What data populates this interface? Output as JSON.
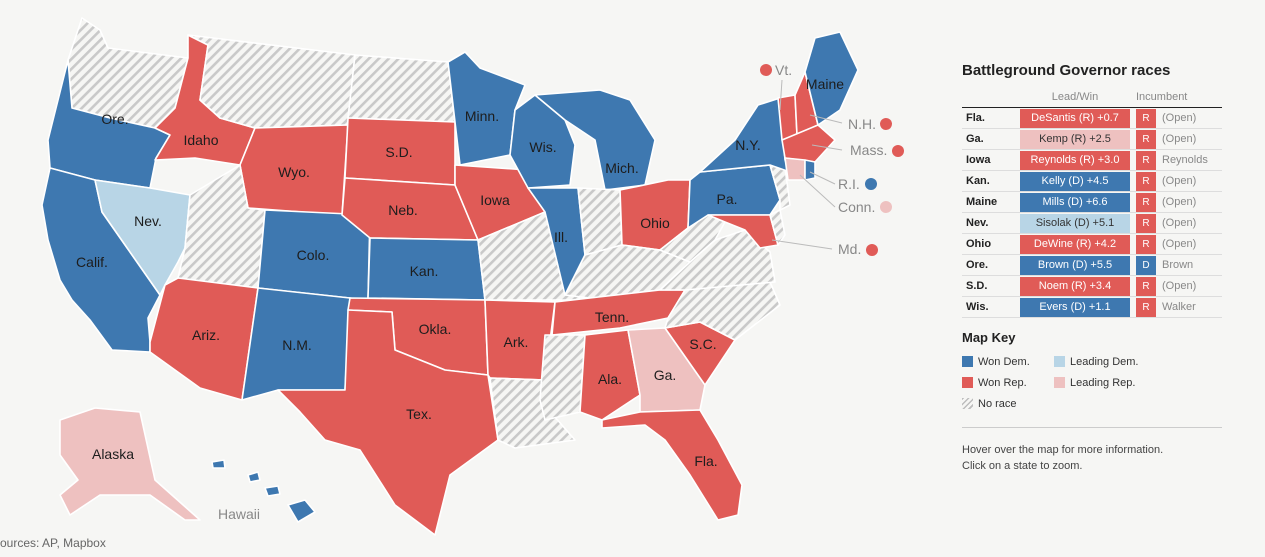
{
  "colors": {
    "won_dem": "#3e78b0",
    "leading_dem": "#b8d5e6",
    "won_rep": "#e05b57",
    "leading_rep": "#eec1c0",
    "no_race": "hatch",
    "white": "#ffffff"
  },
  "map": {
    "states": {
      "WA": "none",
      "OR": "won_dem",
      "CA": "won_dem",
      "NV": "leading_dem",
      "ID": "won_rep",
      "MT": "none",
      "WY": "won_rep",
      "UT": "none",
      "AZ": "won_rep",
      "CO": "won_dem",
      "NM": "won_dem",
      "ND": "none",
      "SD": "won_rep",
      "NE": "won_rep",
      "KS": "won_dem",
      "OK": "won_rep",
      "TX": "won_rep",
      "MN": "won_dem",
      "IA": "won_rep",
      "MO": "none",
      "AR": "won_rep",
      "LA": "none",
      "WI": "won_dem",
      "IL": "won_dem",
      "MI": "won_dem",
      "IN": "none",
      "OH": "won_rep",
      "KY": "none",
      "TN": "won_rep",
      "MS": "none",
      "AL": "won_rep",
      "GA": "leading_rep",
      "FL": "won_rep",
      "SC": "won_rep",
      "NC": "none",
      "VA": "none",
      "WV": "none",
      "PA": "won_dem",
      "NY": "won_dem",
      "ME": "won_dem",
      "VT": "won_rep",
      "NH": "won_rep",
      "MA": "won_rep",
      "CT": "leading_rep",
      "RI": "won_dem",
      "MD": "won_rep",
      "NJ": "none",
      "DE": "none",
      "AK": "leading_rep",
      "HI": "won_dem"
    },
    "labels": {
      "OR": "Ore.",
      "CA": "Calif.",
      "NV": "Nev.",
      "ID": "Idaho",
      "WY": "Wyo.",
      "AZ": "Ariz.",
      "CO": "Colo.",
      "NM": "N.M.",
      "SD": "S.D.",
      "NE": "Neb.",
      "KS": "Kan.",
      "OK": "Okla.",
      "TX": "Tex.",
      "MN": "Minn.",
      "IA": "Iowa",
      "AR": "Ark.",
      "WI": "Wis.",
      "IL": "Ill.",
      "MI": "Mich.",
      "OH": "Ohio",
      "TN": "Tenn.",
      "AL": "Ala.",
      "GA": "Ga.",
      "FL": "Fla.",
      "SC": "S.C.",
      "PA": "Pa.",
      "NY": "N.Y.",
      "ME": "Maine",
      "AK": "Alaska",
      "HI": "Hawaii"
    },
    "callouts": {
      "VT": "Vt.",
      "NH": "N.H.",
      "MA": "Mass.",
      "RI": "R.I.",
      "CT": "Conn.",
      "MD": "Md."
    },
    "sources": "ources: AP, Mapbox"
  },
  "panel": {
    "title": "Battleground Governor races",
    "col_lead": "Lead/Win",
    "col_incumbent": "Incumbent",
    "rows": [
      {
        "state": "Fla.",
        "lead": "DeSantis (R) +0.7",
        "status": "won_rep",
        "party": "R",
        "incumbent": "(Open)"
      },
      {
        "state": "Ga.",
        "lead": "Kemp (R) +2.5",
        "status": "leading_rep",
        "party": "R",
        "incumbent": "(Open)"
      },
      {
        "state": "Iowa",
        "lead": "Reynolds (R) +3.0",
        "status": "won_rep",
        "party": "R",
        "incumbent": "Reynolds"
      },
      {
        "state": "Kan.",
        "lead": "Kelly (D) +4.5",
        "status": "won_dem",
        "party": "R",
        "incumbent": "(Open)"
      },
      {
        "state": "Maine",
        "lead": "Mills (D) +6.6",
        "status": "won_dem",
        "party": "R",
        "incumbent": "(Open)"
      },
      {
        "state": "Nev.",
        "lead": "Sisolak (D) +5.1",
        "status": "leading_dem",
        "party": "R",
        "incumbent": "(Open)"
      },
      {
        "state": "Ohio",
        "lead": "DeWine (R) +4.2",
        "status": "won_rep",
        "party": "R",
        "incumbent": "(Open)"
      },
      {
        "state": "Ore.",
        "lead": "Brown (D) +5.5",
        "status": "won_dem",
        "party": "D",
        "incumbent": "Brown"
      },
      {
        "state": "S.D.",
        "lead": "Noem (R) +3.4",
        "status": "won_rep",
        "party": "R",
        "incumbent": "(Open)"
      },
      {
        "state": "Wis.",
        "lead": "Evers (D) +1.1",
        "status": "won_dem",
        "party": "R",
        "incumbent": "Walker"
      }
    ],
    "key_title": "Map Key",
    "key": {
      "won_dem": "Won Dem.",
      "leading_dem": "Leading Dem.",
      "won_rep": "Won Rep.",
      "leading_rep": "Leading Rep.",
      "no_race": "No race"
    },
    "hint_1": "Hover over the map for more information.",
    "hint_2": "Click on a state to zoom."
  }
}
